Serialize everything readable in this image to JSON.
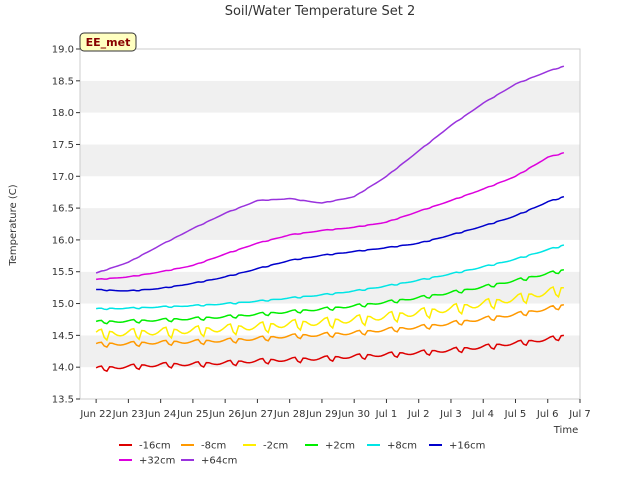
{
  "chart_data": {
    "type": "line",
    "title": "Soil/Water Temperature Set 2",
    "xlabel": "Time",
    "ylabel": "Temperature (C)",
    "station_badge": "EE_met",
    "x_range": [
      "2023-06-21T12:00",
      "2023-07-07T00:00"
    ],
    "ylim": [
      13.5,
      19.0
    ],
    "y_ticks": [
      "13.5",
      "14.0",
      "14.5",
      "15.0",
      "15.5",
      "16.0",
      "16.5",
      "17.0",
      "17.5",
      "18.0",
      "18.5",
      "19.0"
    ],
    "x_ticks": [
      "Jun 22",
      "Jun 23",
      "Jun 24",
      "Jun 25",
      "Jun 26",
      "Jun 27",
      "Jun 28",
      "Jun 29",
      "Jun 30",
      "Jul 1",
      "Jul 2",
      "Jul 3",
      "Jul 4",
      "Jul 5",
      "Jul 6",
      "Jul 7"
    ],
    "grid": "horizontal alternating bands",
    "legend_position": "bottom",
    "series": [
      {
        "name": "-16cm",
        "color": "#dd0000",
        "x": [
          "2023-06-22",
          "2023-06-23",
          "2023-06-24",
          "2023-06-25",
          "2023-06-26",
          "2023-06-27",
          "2023-06-28",
          "2023-06-29",
          "2023-06-30",
          "2023-07-01",
          "2023-07-02",
          "2023-07-03",
          "2023-07-04",
          "2023-07-05",
          "2023-07-06",
          "2023-07-06T12:00"
        ],
        "y": [
          13.99,
          14.02,
          14.05,
          14.06,
          14.08,
          14.11,
          14.13,
          14.15,
          14.18,
          14.21,
          14.24,
          14.28,
          14.33,
          14.39,
          14.45,
          14.5
        ]
      },
      {
        "name": "-8cm",
        "color": "#ff9900",
        "x": [
          "2023-06-22",
          "2023-06-23",
          "2023-06-24",
          "2023-06-25",
          "2023-06-26",
          "2023-06-27",
          "2023-06-28",
          "2023-06-29",
          "2023-06-30",
          "2023-07-01",
          "2023-07-02",
          "2023-07-03",
          "2023-07-04",
          "2023-07-05",
          "2023-07-06",
          "2023-07-06T12:00"
        ],
        "y": [
          14.37,
          14.38,
          14.4,
          14.41,
          14.43,
          14.46,
          14.5,
          14.52,
          14.55,
          14.6,
          14.64,
          14.7,
          14.77,
          14.84,
          14.93,
          14.98
        ]
      },
      {
        "name": "-2cm",
        "color": "#ffee00",
        "x": [
          "2023-06-22",
          "2023-06-23",
          "2023-06-24",
          "2023-06-25",
          "2023-06-26",
          "2023-06-27",
          "2023-06-28",
          "2023-06-29",
          "2023-06-30",
          "2023-07-01",
          "2023-07-02",
          "2023-07-03",
          "2023-07-04",
          "2023-07-05",
          "2023-07-06",
          "2023-07-06T12:00"
        ],
        "y": [
          14.55,
          14.56,
          14.58,
          14.6,
          14.63,
          14.66,
          14.7,
          14.73,
          14.77,
          14.82,
          14.88,
          14.94,
          15.02,
          15.1,
          15.2,
          15.25
        ]
      },
      {
        "name": "+2cm",
        "color": "#00ee00",
        "x": [
          "2023-06-22",
          "2023-06-23",
          "2023-06-24",
          "2023-06-25",
          "2023-06-26",
          "2023-06-27",
          "2023-06-28",
          "2023-06-29",
          "2023-06-30",
          "2023-07-01",
          "2023-07-02",
          "2023-07-03",
          "2023-07-04",
          "2023-07-05",
          "2023-07-06",
          "2023-07-06T12:00"
        ],
        "y": [
          14.72,
          14.73,
          14.75,
          14.77,
          14.8,
          14.84,
          14.88,
          14.92,
          14.97,
          15.03,
          15.1,
          15.18,
          15.27,
          15.37,
          15.48,
          15.53
        ]
      },
      {
        "name": "+8cm",
        "color": "#00e5e5",
        "x": [
          "2023-06-22",
          "2023-06-23",
          "2023-06-24",
          "2023-06-25",
          "2023-06-26",
          "2023-06-27",
          "2023-06-28",
          "2023-06-29",
          "2023-06-30",
          "2023-07-01",
          "2023-07-02",
          "2023-07-03",
          "2023-07-04",
          "2023-07-05",
          "2023-07-06",
          "2023-07-06T12:00"
        ],
        "y": [
          14.92,
          14.93,
          14.95,
          14.97,
          15.0,
          15.04,
          15.09,
          15.14,
          15.2,
          15.28,
          15.37,
          15.47,
          15.58,
          15.7,
          15.85,
          15.92
        ]
      },
      {
        "name": "+16cm",
        "color": "#0000cc",
        "x": [
          "2023-06-22",
          "2023-06-23",
          "2023-06-24",
          "2023-06-25",
          "2023-06-26",
          "2023-06-27",
          "2023-06-28",
          "2023-06-29",
          "2023-06-30",
          "2023-07-01",
          "2023-07-02",
          "2023-07-03",
          "2023-07-04",
          "2023-07-05",
          "2023-07-06",
          "2023-07-06T12:00"
        ],
        "y": [
          15.22,
          15.2,
          15.24,
          15.32,
          15.42,
          15.55,
          15.68,
          15.76,
          15.82,
          15.88,
          15.95,
          16.08,
          16.22,
          16.38,
          16.6,
          16.68
        ]
      },
      {
        "name": "+32cm",
        "color": "#dd00dd",
        "x": [
          "2023-06-22",
          "2023-06-23",
          "2023-06-24",
          "2023-06-25",
          "2023-06-26",
          "2023-06-27",
          "2023-06-28",
          "2023-06-29",
          "2023-06-30",
          "2023-07-01",
          "2023-07-02",
          "2023-07-03",
          "2023-07-04",
          "2023-07-05",
          "2023-07-06",
          "2023-07-06T12:00"
        ],
        "y": [
          15.38,
          15.42,
          15.5,
          15.6,
          15.78,
          15.95,
          16.08,
          16.15,
          16.2,
          16.28,
          16.45,
          16.62,
          16.8,
          17.0,
          17.3,
          17.37
        ]
      },
      {
        "name": "+64cm",
        "color": "#9933dd",
        "x": [
          "2023-06-22",
          "2023-06-23",
          "2023-06-24",
          "2023-06-25",
          "2023-06-26",
          "2023-06-27",
          "2023-06-28",
          "2023-06-29",
          "2023-06-30",
          "2023-07-01",
          "2023-07-02",
          "2023-07-03",
          "2023-07-04",
          "2023-07-05",
          "2023-07-06",
          "2023-07-06T12:00"
        ],
        "y": [
          15.48,
          15.65,
          15.92,
          16.18,
          16.42,
          16.62,
          16.65,
          16.58,
          16.68,
          17.0,
          17.4,
          17.8,
          18.15,
          18.45,
          18.65,
          18.73
        ]
      }
    ]
  }
}
